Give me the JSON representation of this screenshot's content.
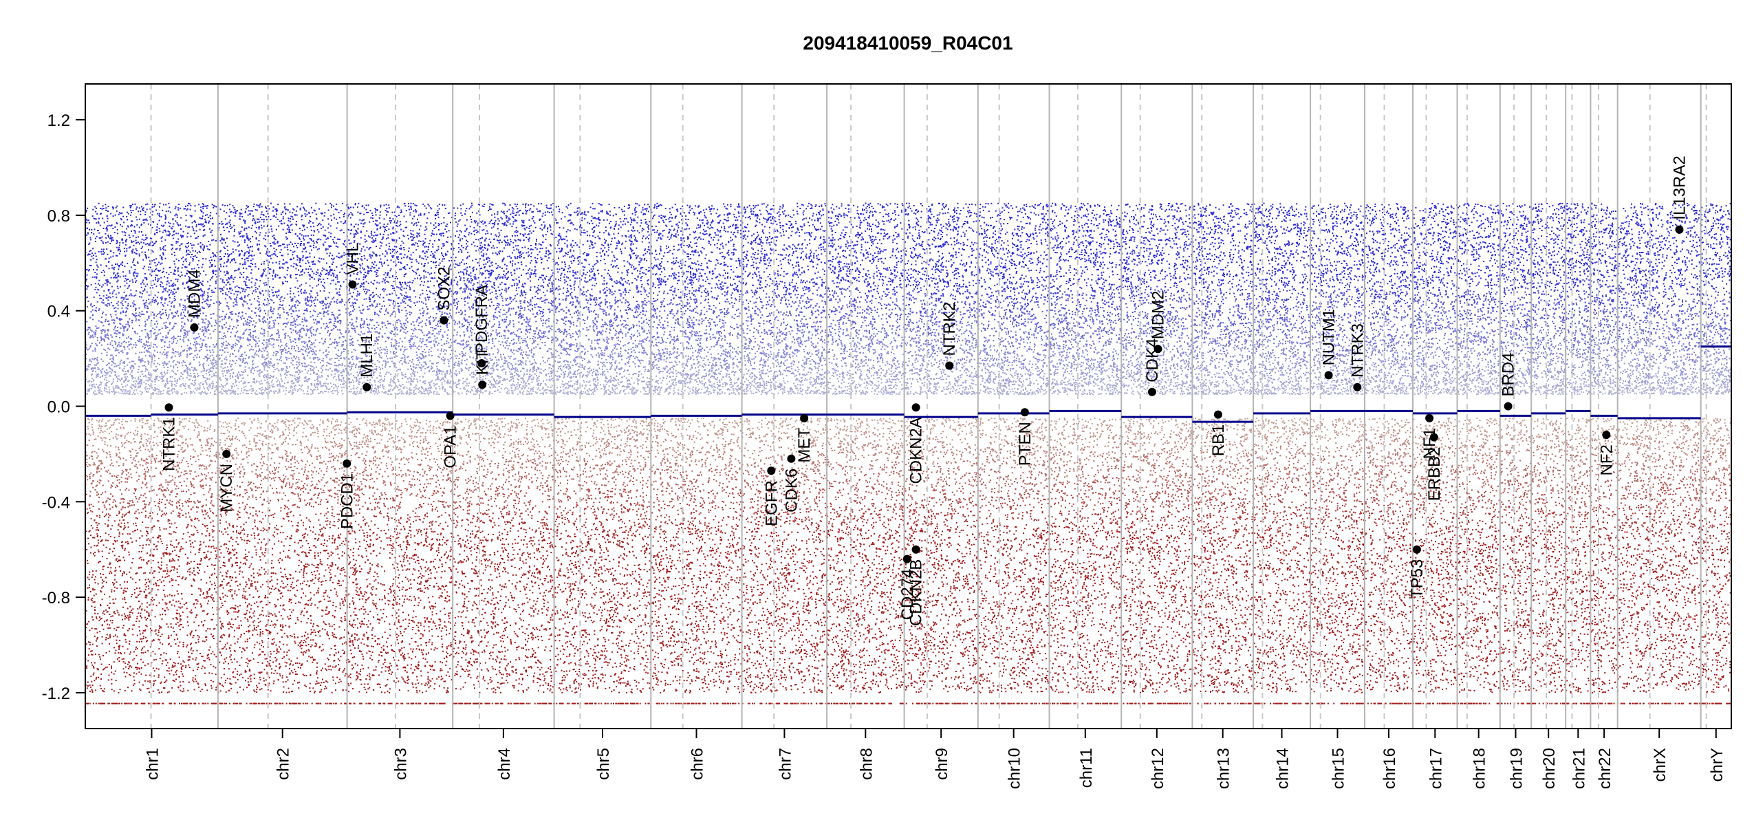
{
  "chart_data": {
    "type": "scatter",
    "title": "209418410059_R04C01",
    "xlabel": "",
    "ylabel": "",
    "ylim": [
      -1.35,
      1.35
    ],
    "y_ticks": [
      -1.2,
      -0.8,
      -0.4,
      0.0,
      0.4,
      0.8,
      1.2
    ],
    "y_tick_labels": [
      "-1.2",
      "-0.8",
      "-0.4",
      "0.0",
      "0.4",
      "0.8",
      "1.2"
    ],
    "grid": false,
    "legend": "none",
    "colors": {
      "gain": "#1f1fbf",
      "loss": "#b21f1f",
      "segment": "#00008b",
      "boundary": "#b4b4b4",
      "centromere": "#c8c8c8",
      "gene": "#000000"
    },
    "genome_units": "Mb",
    "chromosomes": [
      {
        "name": "chr1",
        "length": 248.96,
        "centromere": 123.4
      },
      {
        "name": "chr2",
        "length": 242.19,
        "centromere": 93.9
      },
      {
        "name": "chr3",
        "length": 198.3,
        "centromere": 90.9
      },
      {
        "name": "chr4",
        "length": 190.21,
        "centromere": 50.0
      },
      {
        "name": "chr5",
        "length": 181.54,
        "centromere": 48.8
      },
      {
        "name": "chr6",
        "length": 170.81,
        "centromere": 59.8
      },
      {
        "name": "chr7",
        "length": 159.35,
        "centromere": 60.1
      },
      {
        "name": "chr8",
        "length": 145.14,
        "centromere": 45.2
      },
      {
        "name": "chr9",
        "length": 138.39,
        "centromere": 43.0
      },
      {
        "name": "chr10",
        "length": 133.8,
        "centromere": 39.8
      },
      {
        "name": "chr11",
        "length": 135.09,
        "centromere": 53.4
      },
      {
        "name": "chr12",
        "length": 133.28,
        "centromere": 35.5
      },
      {
        "name": "chr13",
        "length": 114.36,
        "centromere": 17.7
      },
      {
        "name": "chr14",
        "length": 107.04,
        "centromere": 17.2
      },
      {
        "name": "chr15",
        "length": 101.99,
        "centromere": 19.0
      },
      {
        "name": "chr16",
        "length": 90.34,
        "centromere": 36.8
      },
      {
        "name": "chr17",
        "length": 83.26,
        "centromere": 25.1
      },
      {
        "name": "chr18",
        "length": 80.37,
        "centromere": 18.5
      },
      {
        "name": "chr19",
        "length": 58.62,
        "centromere": 26.2
      },
      {
        "name": "chr20",
        "length": 64.44,
        "centromere": 28.1
      },
      {
        "name": "chr21",
        "length": 46.71,
        "centromere": 12.0
      },
      {
        "name": "chr22",
        "length": 50.82,
        "centromere": 15.0
      },
      {
        "name": "chrX",
        "length": 156.04,
        "centromere": 60.6
      },
      {
        "name": "chrY",
        "length": 57.23,
        "centromere": 10.4
      }
    ],
    "segments": [
      {
        "chr": "chr1",
        "start": 0,
        "end": 123.4,
        "value": -0.04
      },
      {
        "chr": "chr1",
        "start": 123.4,
        "end": 248.96,
        "value": -0.035
      },
      {
        "chr": "chr2",
        "start": 0,
        "end": 242.19,
        "value": -0.03
      },
      {
        "chr": "chr3",
        "start": 0,
        "end": 198.3,
        "value": -0.025
      },
      {
        "chr": "chr4",
        "start": 0,
        "end": 190.21,
        "value": -0.035
      },
      {
        "chr": "chr5",
        "start": 0,
        "end": 181.54,
        "value": -0.045
      },
      {
        "chr": "chr6",
        "start": 0,
        "end": 170.81,
        "value": -0.04
      },
      {
        "chr": "chr7",
        "start": 0,
        "end": 159.35,
        "value": -0.035
      },
      {
        "chr": "chr8",
        "start": 0,
        "end": 145.14,
        "value": -0.035
      },
      {
        "chr": "chr9",
        "start": 0,
        "end": 138.39,
        "value": -0.045
      },
      {
        "chr": "chr10",
        "start": 0,
        "end": 133.8,
        "value": -0.03
      },
      {
        "chr": "chr11",
        "start": 0,
        "end": 135.09,
        "value": -0.02
      },
      {
        "chr": "chr12",
        "start": 0,
        "end": 133.28,
        "value": -0.045
      },
      {
        "chr": "chr13",
        "start": 0,
        "end": 114.36,
        "value": -0.065
      },
      {
        "chr": "chr14",
        "start": 0,
        "end": 107.04,
        "value": -0.03
      },
      {
        "chr": "chr15",
        "start": 0,
        "end": 101.99,
        "value": -0.02
      },
      {
        "chr": "chr16",
        "start": 0,
        "end": 90.34,
        "value": -0.02
      },
      {
        "chr": "chr17",
        "start": 0,
        "end": 83.26,
        "value": -0.03
      },
      {
        "chr": "chr18",
        "start": 0,
        "end": 80.37,
        "value": -0.02
      },
      {
        "chr": "chr19",
        "start": 0,
        "end": 58.62,
        "value": -0.04
      },
      {
        "chr": "chr20",
        "start": 0,
        "end": 64.44,
        "value": -0.03
      },
      {
        "chr": "chr21",
        "start": 0,
        "end": 46.71,
        "value": -0.02
      },
      {
        "chr": "chr22",
        "start": 0,
        "end": 50.82,
        "value": -0.04
      },
      {
        "chr": "chrX",
        "start": 0,
        "end": 156.04,
        "value": -0.05
      },
      {
        "chr": "chrY",
        "start": 0,
        "end": 57.23,
        "value": 0.25
      }
    ],
    "genes": [
      {
        "name": "NTRK1",
        "chr": "chr1",
        "pos": 156.8,
        "value": -0.005
      },
      {
        "name": "MDM4",
        "chr": "chr1",
        "pos": 204.5,
        "value": 0.33
      },
      {
        "name": "MYCN",
        "chr": "chr2",
        "pos": 15.9,
        "value": -0.2
      },
      {
        "name": "VHL",
        "chr": "chr3",
        "pos": 10.2,
        "value": 0.51
      },
      {
        "name": "PDCD1",
        "chr": "chr2",
        "pos": 241.8,
        "value": -0.24
      },
      {
        "name": "MLH1",
        "chr": "chr3",
        "pos": 37.0,
        "value": 0.08
      },
      {
        "name": "SOX2",
        "chr": "chr3",
        "pos": 181.7,
        "value": 0.36
      },
      {
        "name": "OPA1",
        "chr": "chr3",
        "pos": 193.6,
        "value": -0.04
      },
      {
        "name": "KIT",
        "chr": "chr4",
        "pos": 55.5,
        "value": 0.09
      },
      {
        "name": "PDGFRA",
        "chr": "chr4",
        "pos": 54.2,
        "value": 0.18
      },
      {
        "name": "EGFR",
        "chr": "chr7",
        "pos": 55.1,
        "value": -0.27
      },
      {
        "name": "CDK6",
        "chr": "chr7",
        "pos": 92.6,
        "value": -0.22
      },
      {
        "name": "MET",
        "chr": "chr7",
        "pos": 116.7,
        "value": -0.05
      },
      {
        "name": "CDKN2A",
        "chr": "chr9",
        "pos": 21.97,
        "value": -0.005
      },
      {
        "name": "CD274",
        "chr": "chr9",
        "pos": 5.45,
        "value": -0.64
      },
      {
        "name": "CDKN2B",
        "chr": "chr9",
        "pos": 22.0,
        "value": -0.6
      },
      {
        "name": "NTRK2",
        "chr": "chr9",
        "pos": 84.7,
        "value": 0.17
      },
      {
        "name": "PTEN",
        "chr": "chr10",
        "pos": 87.9,
        "value": -0.025
      },
      {
        "name": "CDK4",
        "chr": "chr12",
        "pos": 57.7,
        "value": 0.06
      },
      {
        "name": "MDM2",
        "chr": "chr12",
        "pos": 68.8,
        "value": 0.24
      },
      {
        "name": "RB1",
        "chr": "chr13",
        "pos": 48.3,
        "value": -0.035
      },
      {
        "name": "NUTM1",
        "chr": "chr15",
        "pos": 34.3,
        "value": 0.13
      },
      {
        "name": "NTRK3",
        "chr": "chr15",
        "pos": 88.1,
        "value": 0.08
      },
      {
        "name": "TP53",
        "chr": "chr17",
        "pos": 7.6,
        "value": -0.6
      },
      {
        "name": "NF1",
        "chr": "chr17",
        "pos": 31.1,
        "value": -0.05
      },
      {
        "name": "ERBB2",
        "chr": "chr17",
        "pos": 39.7,
        "value": -0.13
      },
      {
        "name": "BRD4",
        "chr": "chr19",
        "pos": 15.2,
        "value": 0.0
      },
      {
        "name": "NF2",
        "chr": "chr22",
        "pos": 29.6,
        "value": -0.12
      },
      {
        "name": "IL13RA2",
        "chr": "chrX",
        "pos": 115.8,
        "value": 0.74
      }
    ]
  }
}
